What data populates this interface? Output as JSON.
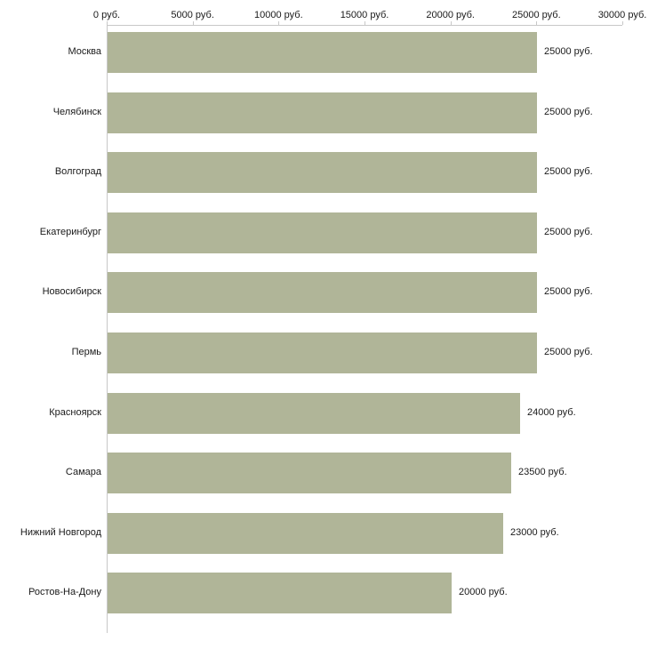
{
  "chart_data": {
    "type": "bar",
    "orientation": "horizontal",
    "title": "",
    "xlabel": "",
    "ylabel": "",
    "categories": [
      "Москва",
      "Челябинск",
      "Волгоград",
      "Екатеринбург",
      "Новосибирск",
      "Пермь",
      "Красноярск",
      "Самара",
      "Нижний Новгород",
      "Ростов-На-Дону"
    ],
    "values": [
      25000,
      25000,
      25000,
      25000,
      25000,
      25000,
      24000,
      23500,
      23000,
      20000
    ],
    "value_labels": [
      "25000 руб.",
      "25000 руб.",
      "25000 руб.",
      "25000 руб.",
      "25000 руб.",
      "25000 руб.",
      "24000 руб.",
      "23500 руб.",
      "23000 руб.",
      "20000 руб."
    ],
    "x_ticks": [
      0,
      5000,
      10000,
      15000,
      20000,
      25000,
      30000
    ],
    "x_tick_labels": [
      "0 руб.",
      "5000 руб.",
      "10000 руб.",
      "15000 руб.",
      "20000 руб.",
      "25000 руб.",
      "30000 руб."
    ],
    "xlim": [
      0,
      30000
    ],
    "bar_color": "#b0b598",
    "axis_color": "#c8c8c8",
    "text_color": "#1a1a1a",
    "grid": "off",
    "legend": "none"
  }
}
